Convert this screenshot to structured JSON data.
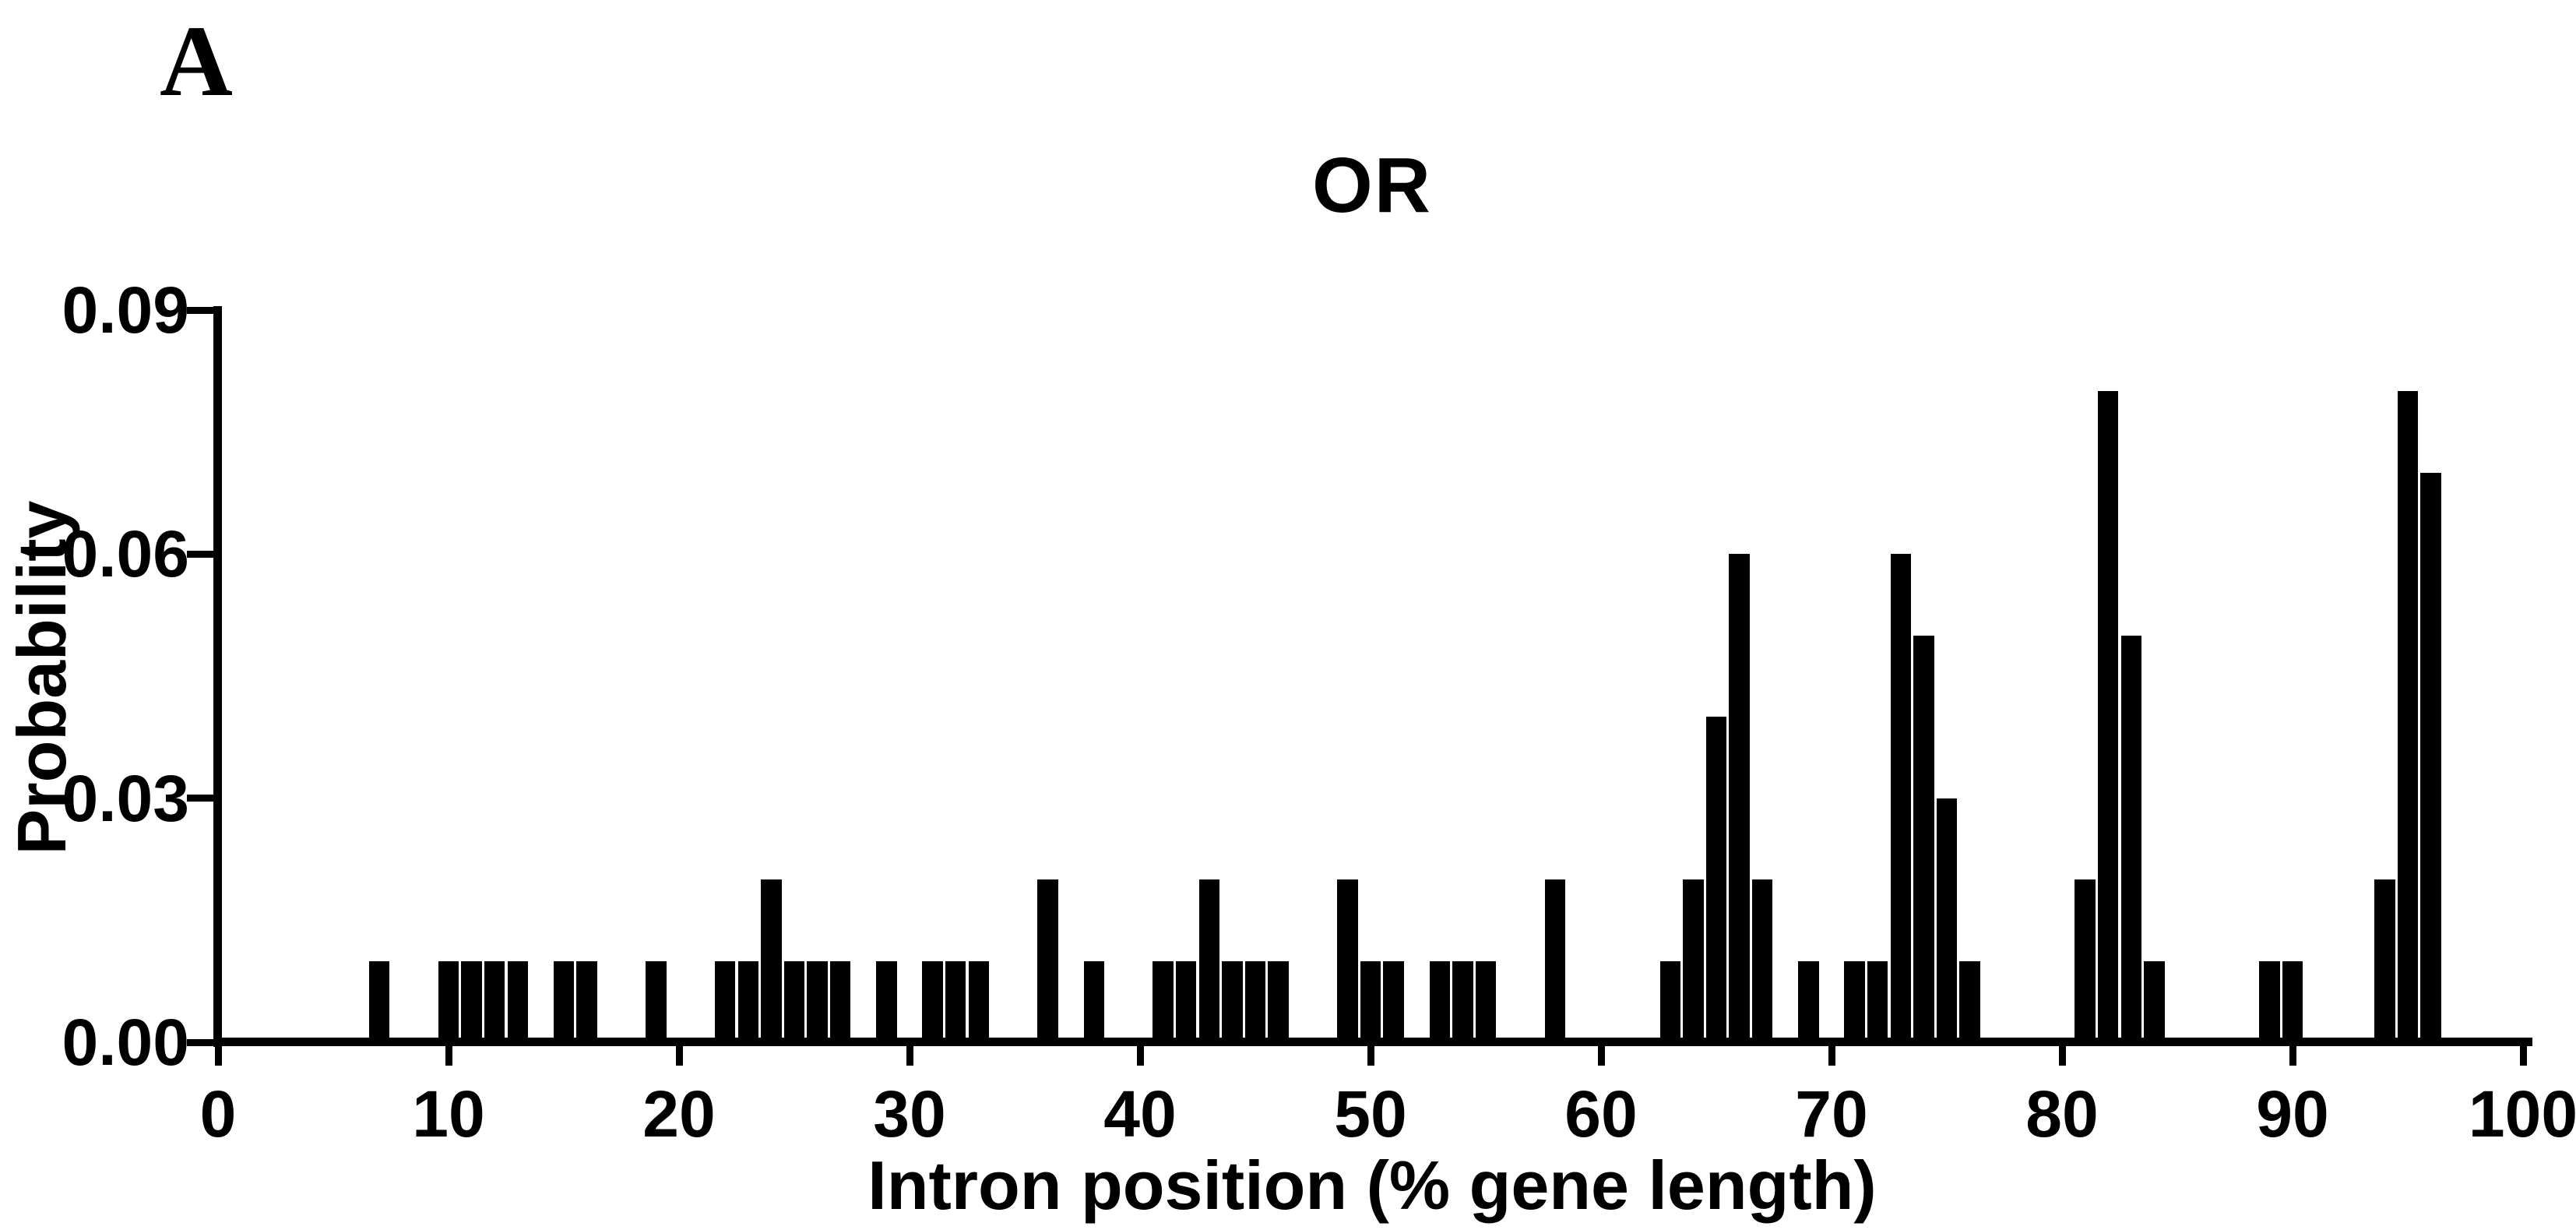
{
  "panel_label": "A",
  "colors": {
    "background": "#ffffff",
    "bar_fill": "#000000",
    "axis": "#000000",
    "text": "#000000"
  },
  "chart_data": {
    "type": "bar",
    "title": "OR",
    "xlabel": "Intron position (% gene length)",
    "ylabel": "Probability",
    "xlim": [
      0,
      100
    ],
    "ylim": [
      0,
      0.09
    ],
    "bin_width": 1,
    "grid": "off",
    "legend": "none",
    "x_ticks": [
      {
        "value": 0,
        "label": "0"
      },
      {
        "value": 10,
        "label": "10"
      },
      {
        "value": 20,
        "label": "20"
      },
      {
        "value": 30,
        "label": "30"
      },
      {
        "value": 40,
        "label": "40"
      },
      {
        "value": 50,
        "label": "50"
      },
      {
        "value": 60,
        "label": "60"
      },
      {
        "value": 70,
        "label": "70"
      },
      {
        "value": 80,
        "label": "80"
      },
      {
        "value": 90,
        "label": "90"
      },
      {
        "value": 100,
        "label": "100"
      }
    ],
    "y_ticks": [
      {
        "value": 0.0,
        "label": "0.00"
      },
      {
        "value": 0.03,
        "label": "0.03"
      },
      {
        "value": 0.06,
        "label": "0.06"
      },
      {
        "value": 0.09,
        "label": "0.09"
      }
    ],
    "bars": [
      {
        "x": 7,
        "p": 0.01
      },
      {
        "x": 10,
        "p": 0.01
      },
      {
        "x": 11,
        "p": 0.01
      },
      {
        "x": 12,
        "p": 0.01
      },
      {
        "x": 13,
        "p": 0.01
      },
      {
        "x": 15,
        "p": 0.01
      },
      {
        "x": 16,
        "p": 0.01
      },
      {
        "x": 19,
        "p": 0.01
      },
      {
        "x": 22,
        "p": 0.01
      },
      {
        "x": 23,
        "p": 0.01
      },
      {
        "x": 24,
        "p": 0.02
      },
      {
        "x": 25,
        "p": 0.01
      },
      {
        "x": 26,
        "p": 0.01
      },
      {
        "x": 27,
        "p": 0.01
      },
      {
        "x": 29,
        "p": 0.01
      },
      {
        "x": 31,
        "p": 0.01
      },
      {
        "x": 32,
        "p": 0.01
      },
      {
        "x": 33,
        "p": 0.01
      },
      {
        "x": 36,
        "p": 0.02
      },
      {
        "x": 38,
        "p": 0.01
      },
      {
        "x": 41,
        "p": 0.01
      },
      {
        "x": 42,
        "p": 0.01
      },
      {
        "x": 43,
        "p": 0.02
      },
      {
        "x": 44,
        "p": 0.01
      },
      {
        "x": 45,
        "p": 0.01
      },
      {
        "x": 46,
        "p": 0.01
      },
      {
        "x": 49,
        "p": 0.02
      },
      {
        "x": 50,
        "p": 0.01
      },
      {
        "x": 51,
        "p": 0.01
      },
      {
        "x": 53,
        "p": 0.01
      },
      {
        "x": 54,
        "p": 0.01
      },
      {
        "x": 55,
        "p": 0.01
      },
      {
        "x": 58,
        "p": 0.02
      },
      {
        "x": 63,
        "p": 0.01
      },
      {
        "x": 64,
        "p": 0.02
      },
      {
        "x": 65,
        "p": 0.04
      },
      {
        "x": 66,
        "p": 0.06
      },
      {
        "x": 67,
        "p": 0.02
      },
      {
        "x": 69,
        "p": 0.01
      },
      {
        "x": 71,
        "p": 0.01
      },
      {
        "x": 72,
        "p": 0.01
      },
      {
        "x": 73,
        "p": 0.06
      },
      {
        "x": 74,
        "p": 0.05
      },
      {
        "x": 75,
        "p": 0.03
      },
      {
        "x": 76,
        "p": 0.01
      },
      {
        "x": 81,
        "p": 0.02
      },
      {
        "x": 82,
        "p": 0.08
      },
      {
        "x": 83,
        "p": 0.05
      },
      {
        "x": 84,
        "p": 0.01
      },
      {
        "x": 89,
        "p": 0.01
      },
      {
        "x": 90,
        "p": 0.01
      },
      {
        "x": 94,
        "p": 0.02
      },
      {
        "x": 95,
        "p": 0.08
      },
      {
        "x": 96,
        "p": 0.07
      }
    ]
  }
}
